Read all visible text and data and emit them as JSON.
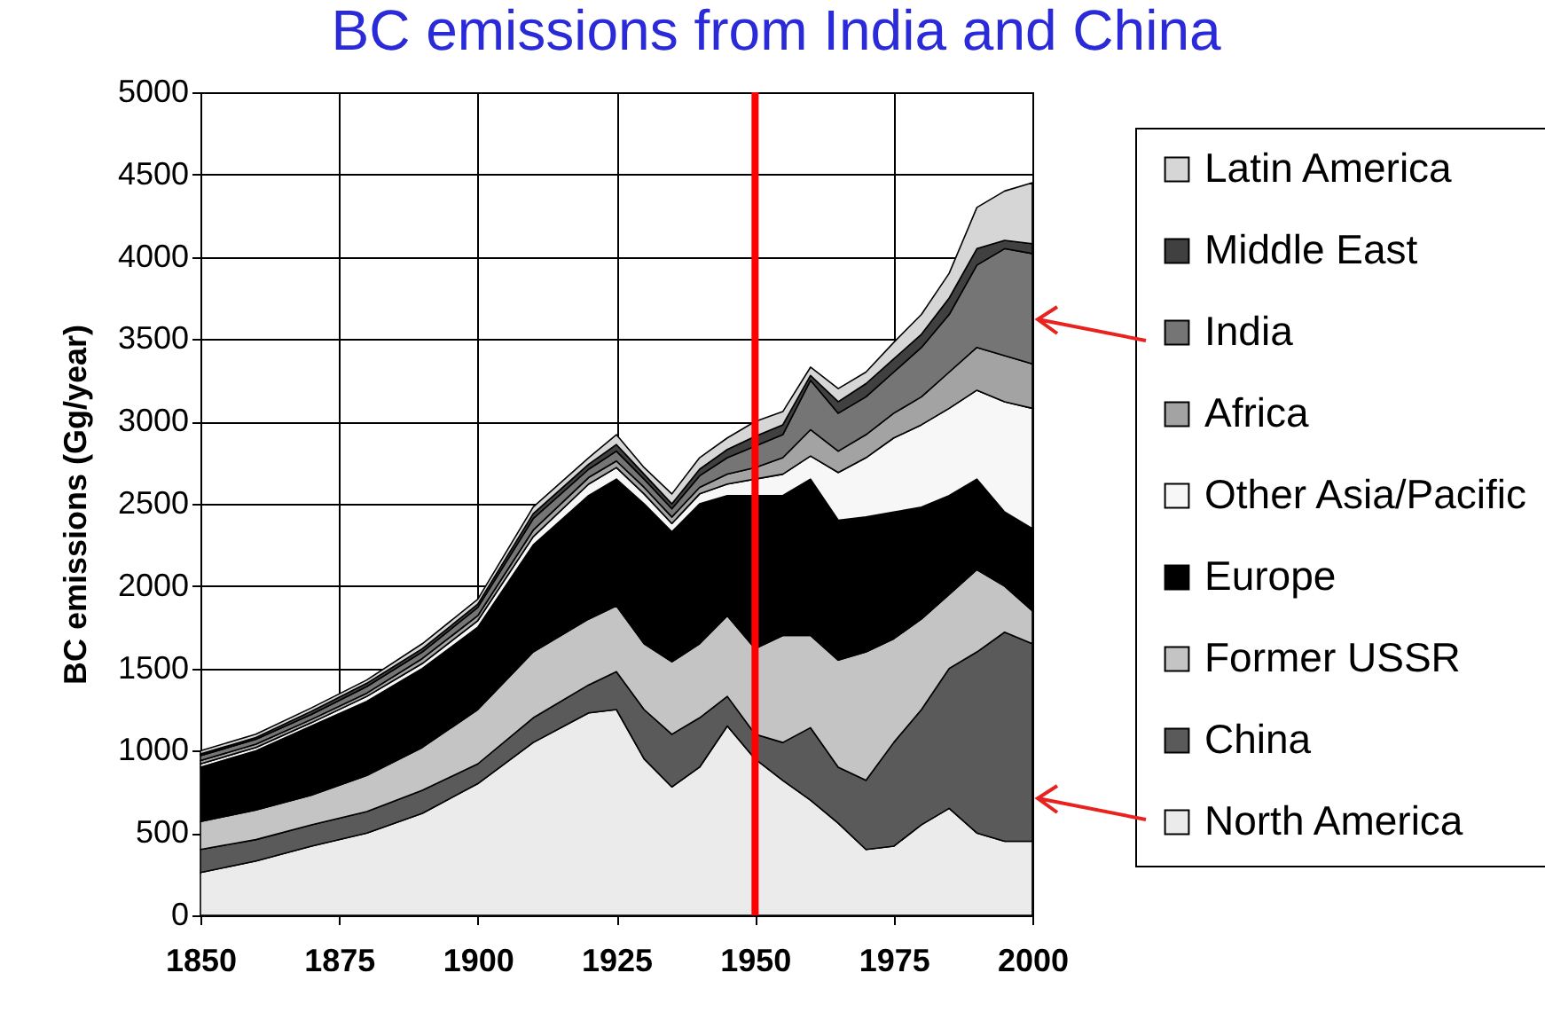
{
  "chart_data": {
    "type": "area",
    "stacked": true,
    "title": "BC emissions from India and China",
    "ylabel": "BC emissions (Gg/year)",
    "x": [
      1850,
      1860,
      1870,
      1880,
      1890,
      1900,
      1910,
      1920,
      1925,
      1930,
      1935,
      1940,
      1945,
      1950,
      1955,
      1960,
      1965,
      1970,
      1975,
      1980,
      1985,
      1990,
      1995,
      2000
    ],
    "xlim": [
      1850,
      2000
    ],
    "xticks": [
      1850,
      1875,
      1900,
      1925,
      1950,
      1975,
      2000
    ],
    "ylim": [
      0,
      5000
    ],
    "yticks": [
      0,
      500,
      1000,
      1500,
      2000,
      2500,
      3000,
      3500,
      4000,
      4500,
      5000
    ],
    "grid": true,
    "legend": "right",
    "series": [
      {
        "name": "North America",
        "color": "#ebebeb",
        "values": [
          260,
          330,
          420,
          500,
          620,
          800,
          1050,
          1230,
          1250,
          950,
          780,
          900,
          1150,
          950,
          820,
          700,
          560,
          400,
          420,
          550,
          650,
          500,
          450,
          450
        ]
      },
      {
        "name": "China",
        "color": "#5a5a5a",
        "values": [
          140,
          130,
          130,
          130,
          140,
          120,
          150,
          170,
          230,
          300,
          320,
          300,
          180,
          150,
          230,
          440,
          340,
          420,
          630,
          700,
          850,
          1100,
          1270,
          1200
        ]
      },
      {
        "name": "Former USSR",
        "color": "#c4c4c4",
        "values": [
          170,
          180,
          180,
          220,
          260,
          330,
          400,
          400,
          400,
          400,
          440,
          450,
          490,
          520,
          650,
          560,
          650,
          780,
          630,
          550,
          450,
          500,
          280,
          200
        ]
      },
      {
        "name": "Europe",
        "color": "#000000",
        "values": [
          330,
          360,
          420,
          450,
          480,
          500,
          650,
          750,
          770,
          850,
          790,
          850,
          730,
          930,
          850,
          950,
          850,
          820,
          770,
          680,
          600,
          550,
          450,
          500
        ]
      },
      {
        "name": "Other Asia/Pacific",
        "color": "#f7f7f7",
        "values": [
          20,
          20,
          20,
          30,
          30,
          40,
          50,
          70,
          70,
          60,
          50,
          60,
          70,
          100,
          130,
          140,
          290,
          360,
          450,
          500,
          530,
          540,
          670,
          730
        ]
      },
      {
        "name": "Africa",
        "color": "#a3a3a3",
        "values": [
          20,
          20,
          20,
          20,
          30,
          30,
          40,
          40,
          40,
          40,
          40,
          40,
          60,
          70,
          100,
          160,
          130,
          140,
          150,
          170,
          220,
          260,
          280,
          270
        ]
      },
      {
        "name": "India",
        "color": "#757575",
        "values": [
          30,
          30,
          30,
          40,
          40,
          50,
          70,
          50,
          60,
          50,
          50,
          70,
          100,
          130,
          140,
          300,
          230,
          230,
          250,
          300,
          350,
          500,
          650,
          670
        ]
      },
      {
        "name": "Middle East",
        "color": "#404040",
        "values": [
          10,
          10,
          20,
          20,
          20,
          20,
          30,
          30,
          40,
          30,
          30,
          40,
          50,
          60,
          60,
          30,
          70,
          80,
          80,
          80,
          100,
          100,
          50,
          60
        ]
      },
      {
        "name": "Latin America",
        "color": "#d6d6d6",
        "values": [
          20,
          20,
          20,
          20,
          30,
          30,
          40,
          40,
          60,
          40,
          60,
          70,
          70,
          90,
          80,
          50,
          80,
          70,
          100,
          120,
          150,
          250,
          300,
          370
        ]
      }
    ],
    "ref_lines": [
      {
        "axis": "x",
        "value": 1950,
        "color": "#ff0000"
      }
    ]
  }
}
